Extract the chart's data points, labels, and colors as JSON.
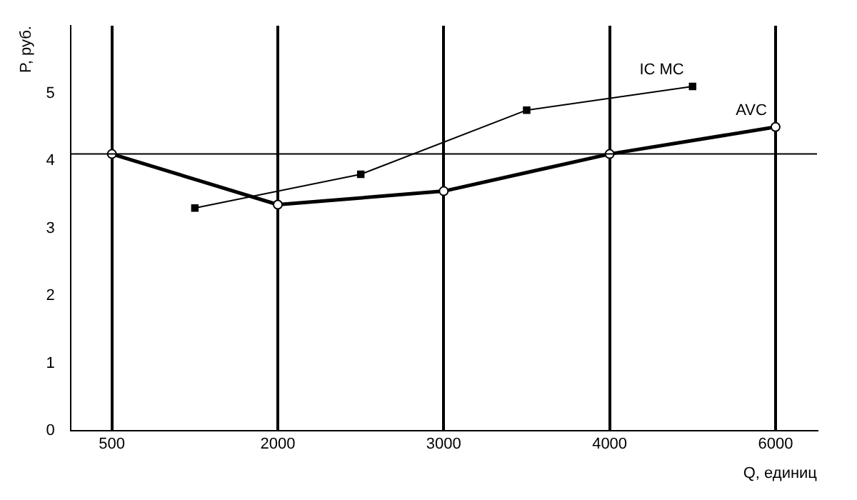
{
  "chart_data": {
    "type": "line",
    "xlabel": "Q, единиц",
    "ylabel": "P, руб.",
    "categories": [
      "500",
      null,
      "2000",
      null,
      "3000",
      null,
      "4000",
      null,
      "6000"
    ],
    "series": [
      {
        "name": "AVC",
        "color": "#000000",
        "marker": "circle",
        "values": [
          4.1,
          null,
          3.35,
          null,
          3.55,
          null,
          4.1,
          null,
          4.5
        ]
      },
      {
        "name": "IC MC",
        "color": "#000000",
        "marker": "square",
        "values": [
          null,
          3.3,
          null,
          3.8,
          null,
          4.75,
          null,
          5.1,
          null
        ]
      }
    ],
    "ylim": [
      0,
      6
    ],
    "yticks": [
      0,
      1,
      2,
      3,
      4,
      5
    ],
    "grid": "x",
    "legend": false,
    "ref_lines": [
      {
        "axis": "y",
        "value": 4.1,
        "color": "#000000"
      }
    ]
  }
}
